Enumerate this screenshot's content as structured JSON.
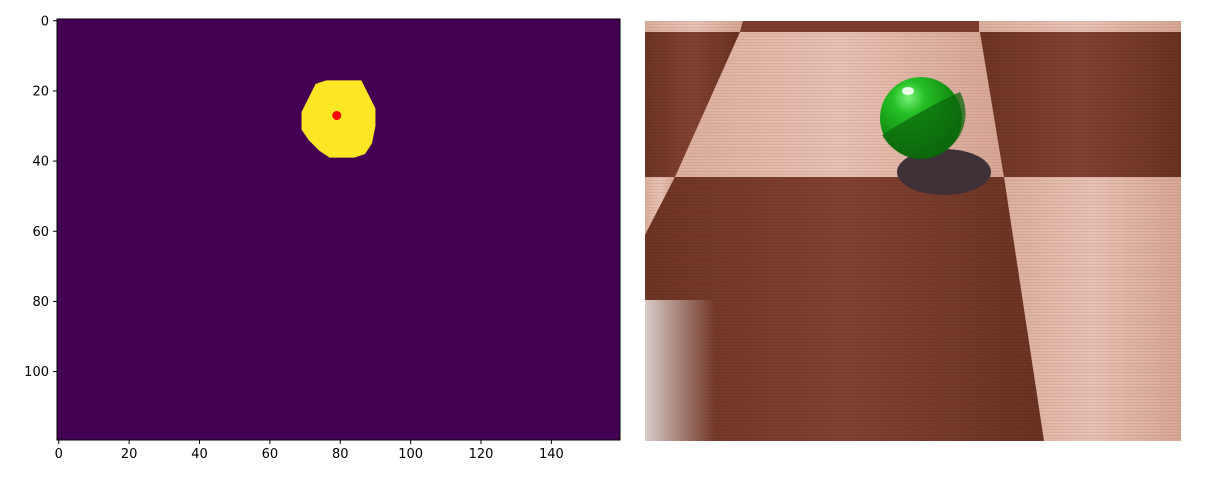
{
  "chart_data": [
    {
      "type": "heatmap",
      "panel": "segmentation-mask",
      "xlim": [
        -0.5,
        159.5
      ],
      "ylim": [
        119.5,
        -0.5
      ],
      "x_ticks": [
        0,
        20,
        40,
        60,
        80,
        100,
        120,
        140
      ],
      "y_ticks": [
        0,
        20,
        40,
        60,
        80,
        100
      ],
      "x_tick_labels": [
        "0",
        "20",
        "40",
        "60",
        "80",
        "100",
        "120",
        "140"
      ],
      "y_tick_labels": [
        "0",
        "20",
        "40",
        "60",
        "80",
        "100"
      ],
      "colormap": "viridis",
      "background_color": "#440154",
      "mask_color": "#fde725",
      "mask_region": {
        "shape": "blob",
        "outline_points": [
          [
            76,
            17
          ],
          [
            86,
            17
          ],
          [
            88,
            21
          ],
          [
            90,
            25
          ],
          [
            90,
            30
          ],
          [
            89,
            35
          ],
          [
            87,
            38
          ],
          [
            84,
            39
          ],
          [
            77,
            39
          ],
          [
            74,
            37
          ],
          [
            71,
            34
          ],
          [
            69,
            31
          ],
          [
            69,
            26
          ],
          [
            71,
            22
          ],
          [
            73,
            18
          ]
        ]
      },
      "centroid_marker": {
        "x": 79,
        "y": 27,
        "color": "#ff0000"
      },
      "grid": false,
      "legend": "none"
    },
    {
      "type": "image",
      "panel": "camera-view",
      "description_colors": {
        "light_tile": "#e2b6a6",
        "dark_tile": "#7a3b2a",
        "ball_green": "#1aa11a",
        "shadow": "#3e3238"
      },
      "axes": "off"
    }
  ]
}
